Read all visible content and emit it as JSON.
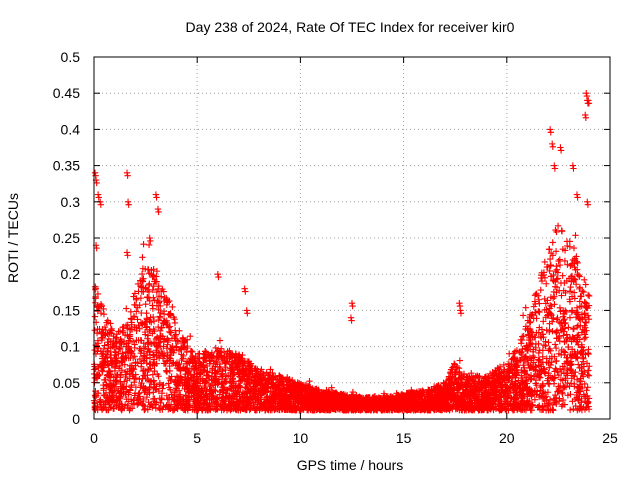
{
  "chart_data": {
    "type": "scatter",
    "title": "Day 238 of 2024, Rate Of TEC Index for receiver kir0",
    "xlabel": "GPS time / hours",
    "ylabel": "ROTI / TECUs",
    "xlim": [
      0,
      25
    ],
    "ylim": [
      0,
      0.5
    ],
    "xticks": [
      "0",
      "5",
      "10",
      "15",
      "20",
      "25"
    ],
    "yticks": [
      "0",
      "0.05",
      "0.1",
      "0.15",
      "0.2",
      "0.25",
      "0.3",
      "0.35",
      "0.4",
      "0.45",
      "0.5"
    ],
    "grid": true,
    "marker": "plus",
    "color": "#ff0000",
    "x_data_range_hours": [
      0,
      24
    ],
    "envelope": {
      "description": "approximate upper envelope of the dense point cloud (x in hours, y in TECU)",
      "x": [
        0,
        0.5,
        1,
        1.5,
        2,
        2.5,
        3,
        3.5,
        4,
        5,
        6,
        7,
        8,
        9,
        10,
        11,
        12,
        13,
        14,
        15,
        16,
        17,
        17.5,
        18,
        19,
        20,
        20.5,
        21,
        21.5,
        22,
        22.5,
        23,
        23.5,
        24
      ],
      "y": [
        0.2,
        0.15,
        0.12,
        0.13,
        0.18,
        0.22,
        0.21,
        0.17,
        0.13,
        0.09,
        0.1,
        0.09,
        0.07,
        0.06,
        0.05,
        0.04,
        0.035,
        0.03,
        0.03,
        0.035,
        0.04,
        0.05,
        0.08,
        0.06,
        0.06,
        0.08,
        0.1,
        0.14,
        0.19,
        0.24,
        0.27,
        0.26,
        0.22,
        0.17
      ]
    },
    "notable_points": {
      "x": [
        0.05,
        0.1,
        0.2,
        0.3,
        0.1,
        1.6,
        1.65,
        1.6,
        3.0,
        3.1,
        2.7,
        6.0,
        7.3,
        7.4,
        12.5,
        12.45,
        17.7,
        17.75,
        22.1,
        22.2,
        22.3,
        22.6,
        23.2,
        23.4,
        23.8,
        23.9,
        23.85,
        23.95,
        23.9
      ],
      "y": [
        0.34,
        0.33,
        0.31,
        0.3,
        0.24,
        0.34,
        0.3,
        0.23,
        0.31,
        0.29,
        0.25,
        0.2,
        0.18,
        0.15,
        0.16,
        0.14,
        0.16,
        0.15,
        0.4,
        0.38,
        0.35,
        0.375,
        0.35,
        0.31,
        0.42,
        0.44,
        0.45,
        0.44,
        0.3
      ]
    }
  }
}
